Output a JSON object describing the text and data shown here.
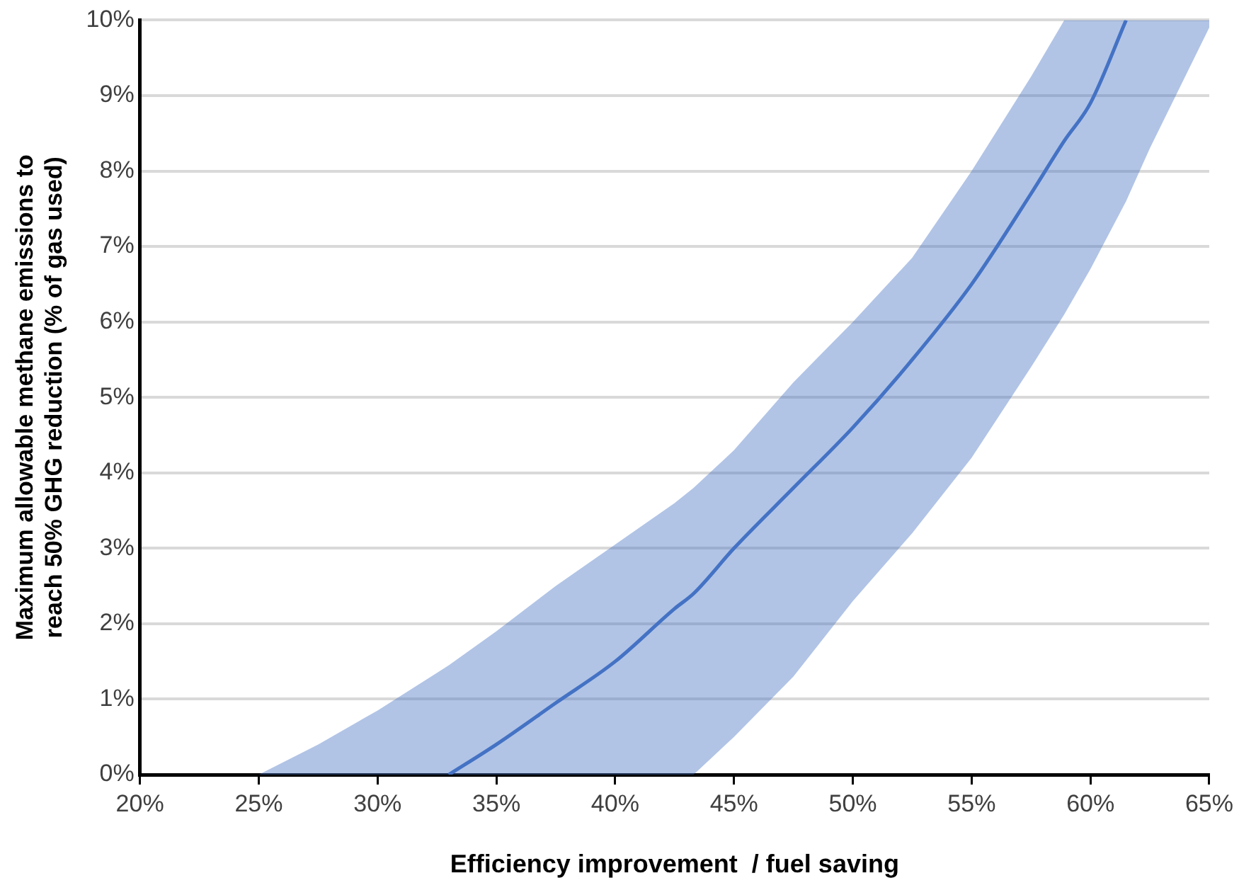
{
  "chart_data": {
    "type": "line",
    "xlabel": "Efficiency improvement  / fuel saving",
    "ylabel": "Maximum allowable methane emissions to reach 50% GHG reduction (% of gas used)",
    "xlim": [
      20,
      65
    ],
    "xticks": [
      {
        "value": 20,
        "label": "20%"
      },
      {
        "value": 25,
        "label": "25%"
      },
      {
        "value": 30,
        "label": "30%"
      },
      {
        "value": 35,
        "label": "35%"
      },
      {
        "value": 40,
        "label": "40%"
      },
      {
        "value": 45,
        "label": "45%"
      },
      {
        "value": 50,
        "label": "50%"
      },
      {
        "value": 55,
        "label": "55%"
      },
      {
        "value": 60,
        "label": "60%"
      },
      {
        "value": 65,
        "label": "65%"
      }
    ],
    "ylim": [
      0,
      10
    ],
    "yticks": [
      {
        "value": 0,
        "label": "0%"
      },
      {
        "value": 1,
        "label": "1%"
      },
      {
        "value": 2,
        "label": "2%"
      },
      {
        "value": 3,
        "label": "3%"
      },
      {
        "value": 4,
        "label": "4%"
      },
      {
        "value": 5,
        "label": "5%"
      },
      {
        "value": 6,
        "label": "6%"
      },
      {
        "value": 7,
        "label": "7%"
      },
      {
        "value": 8,
        "label": "8%"
      },
      {
        "value": 9,
        "label": "9%"
      },
      {
        "value": 10,
        "label": "10%"
      }
    ],
    "grid": "y",
    "legend": false,
    "marker": "none",
    "line_style": "solid",
    "series": [
      {
        "color": "#4472c4",
        "x": [
          25,
          27.5,
          30,
          32.5,
          33,
          35,
          37.5,
          40,
          42.5,
          43.3,
          45,
          47.5,
          50,
          52.5,
          55,
          57.5,
          58.9,
          60,
          61.5,
          62.5,
          65
        ],
        "values": [
          null,
          null,
          null,
          null,
          0,
          0.4,
          0.95,
          1.5,
          2.2,
          2.4,
          3.0,
          3.8,
          4.6,
          5.5,
          6.5,
          7.7,
          8.4,
          8.9,
          10,
          null,
          null
        ],
        "upper": [
          0,
          0.4,
          0.85,
          1.35,
          1.45,
          1.9,
          2.5,
          3.05,
          3.6,
          3.8,
          4.3,
          5.2,
          6.0,
          6.85,
          8.0,
          9.25,
          10,
          10,
          10,
          10,
          10
        ],
        "lower": [
          0,
          0,
          0,
          0,
          0,
          0,
          0,
          0,
          0,
          0,
          0.5,
          1.3,
          2.3,
          3.2,
          4.2,
          5.4,
          6.1,
          6.7,
          7.6,
          8.3,
          9.9
        ]
      }
    ]
  }
}
